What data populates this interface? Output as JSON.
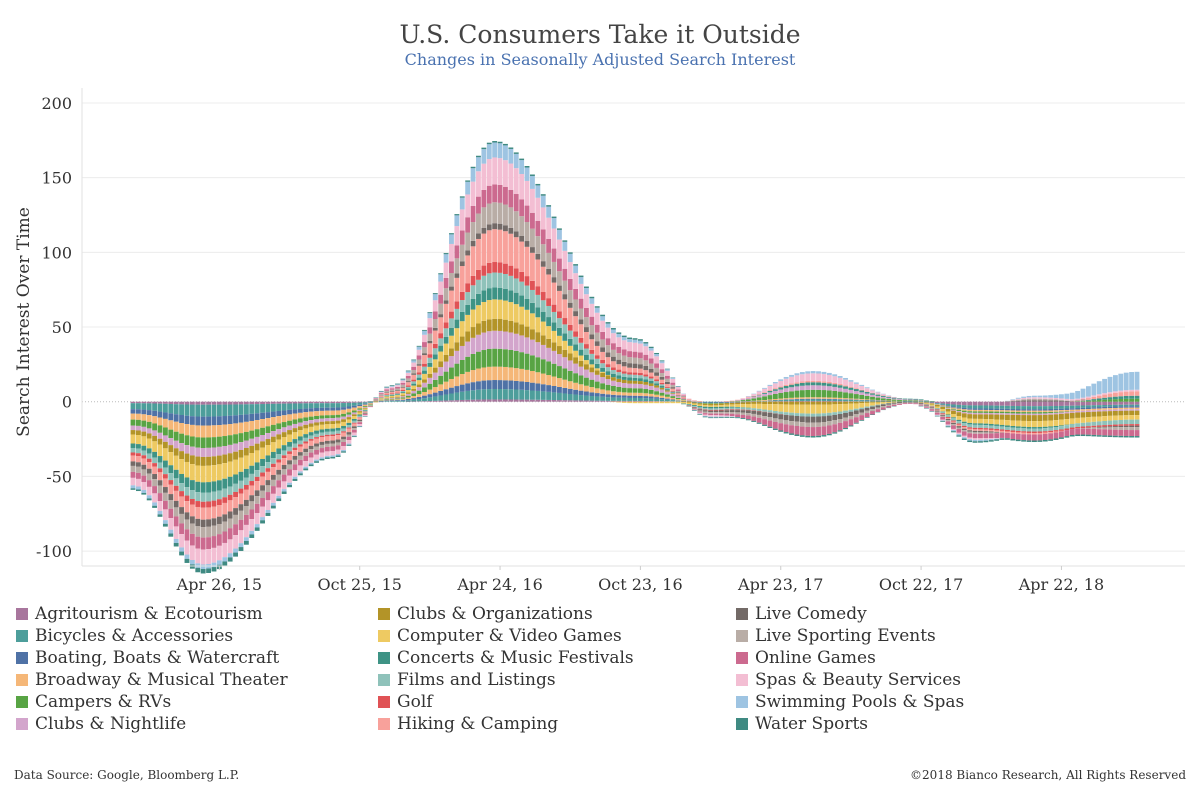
{
  "header": {
    "title": "U.S. Consumers Take it Outside",
    "subtitle": "Changes in Seasonally Adjusted Search Interest"
  },
  "footer": {
    "source": "Data Source: Google, Bloomberg L.P.",
    "copyright": "©2018 Bianco Research, All Rights Reserved"
  },
  "chart_data": {
    "type": "bar",
    "stacked": true,
    "title": "U.S. Consumers Take it Outside",
    "subtitle": "Changes in Seasonally Adjusted Search Interest",
    "ylabel": "Search Interest Over Time",
    "xlabel": "",
    "ylim": [
      -110,
      210
    ],
    "yticks": [
      -100,
      -50,
      0,
      50,
      100,
      150,
      200
    ],
    "grid": true,
    "legend_position": "bottom",
    "x_tick_labels": [
      "Apr 26, 15",
      "Oct 25, 15",
      "Apr 24, 16",
      "Oct 23, 16",
      "Apr 23, 17",
      "Oct 22, 17",
      "Apr 22, 18"
    ],
    "x_tick_dates": [
      "2015-04-26",
      "2015-10-25",
      "2016-04-24",
      "2016-10-23",
      "2017-04-23",
      "2017-10-22",
      "2018-04-22"
    ],
    "x_range": [
      "2015-01-04",
      "2018-07-29"
    ],
    "x_interval": "weekly",
    "layer_profile_dates": [
      "2015-01-04",
      "2015-04-05",
      "2015-09-20",
      "2015-12-06",
      "2016-04-17",
      "2016-10-16",
      "2017-01-22",
      "2017-06-04",
      "2017-10-08",
      "2017-12-31",
      "2018-03-18",
      "2018-07-29"
    ],
    "series": [
      {
        "name": "Agritourism & Ecotourism",
        "color": "#a8769d",
        "values": [
          -1,
          -2,
          -1,
          0,
          1.5,
          0.5,
          0,
          0.5,
          0,
          -2.5,
          -3,
          -2
        ]
      },
      {
        "name": "Bicycles & Accessories",
        "color": "#4d9e9b",
        "values": [
          -4,
          -8,
          -3,
          0.5,
          7,
          2,
          -0.5,
          1,
          0.5,
          -2,
          -2,
          -1
        ]
      },
      {
        "name": "Boating, Boats & Watercraft",
        "color": "#4f72a6",
        "values": [
          -3,
          -6,
          -2,
          0.5,
          6,
          1.5,
          -0.5,
          0.5,
          0,
          -1,
          -1,
          -1
        ]
      },
      {
        "name": "Broadway & Musical Theater",
        "color": "#f5b778",
        "values": [
          -4,
          -8,
          -3,
          0.5,
          9,
          2,
          0,
          1,
          0,
          -1,
          -1,
          -1
        ]
      },
      {
        "name": "Campers & RVs",
        "color": "#58a444",
        "values": [
          -4,
          -7,
          -2,
          0.5,
          12,
          3,
          -0.5,
          5,
          0.5,
          -1,
          -1,
          2
        ]
      },
      {
        "name": "Clubs & Nightlife",
        "color": "#d3a5cc",
        "values": [
          -3,
          -6,
          -2,
          0.5,
          12,
          3,
          0,
          3,
          0.5,
          -1,
          -1,
          -1
        ]
      },
      {
        "name": "Clubs & Organizations",
        "color": "#b39428",
        "values": [
          -3,
          -6,
          -2,
          0.5,
          8,
          2,
          -1,
          -2,
          0,
          -3,
          -4,
          -3
        ]
      },
      {
        "name": "Computer & Video Games",
        "color": "#eeca62",
        "values": [
          -6,
          -11,
          -3,
          1,
          13,
          -1,
          -1,
          -6,
          0,
          -3,
          -4,
          -3
        ]
      },
      {
        "name": "Concerts & Music Festivals",
        "color": "#3e9385",
        "values": [
          -3,
          -7,
          -2,
          0.5,
          8,
          2,
          -1,
          2,
          0.5,
          -1,
          -1,
          2
        ]
      },
      {
        "name": "Films and Listings",
        "color": "#8fc2ba",
        "values": [
          -3,
          -6,
          -2,
          0.5,
          10,
          2,
          -1,
          -2,
          0,
          -2,
          -2,
          -3
        ]
      },
      {
        "name": "Golf",
        "color": "#e05255",
        "values": [
          -2,
          -4,
          -1,
          0.5,
          7,
          1.5,
          -0.5,
          0,
          0,
          -1,
          -1,
          -1
        ]
      },
      {
        "name": "Hiking & Camping",
        "color": "#f8a19b",
        "values": [
          -4,
          -8,
          -3,
          1,
          22,
          3,
          0,
          1,
          0,
          -1,
          -1,
          3
        ]
      },
      {
        "name": "Live Comedy",
        "color": "#736a67",
        "values": [
          -3,
          -5,
          -2,
          0.5,
          4,
          3,
          -1,
          -4,
          -0.5,
          -1,
          1,
          -1
        ]
      },
      {
        "name": "Live Sporting Events",
        "color": "#b9ada6",
        "values": [
          -4,
          -7,
          -2,
          1,
          14,
          4,
          -1,
          -3,
          -0.5,
          -1,
          1,
          -2
        ]
      },
      {
        "name": "Online Games",
        "color": "#cc6a8f",
        "values": [
          -4,
          -8,
          -3,
          1,
          12,
          4,
          -1,
          -6,
          -0.5,
          -3,
          -4,
          -4
        ]
      },
      {
        "name": "Spas & Beauty Services",
        "color": "#f3bed3",
        "values": [
          -5,
          -10,
          -3,
          1,
          18,
          6,
          -1,
          5,
          0,
          -1,
          1,
          1
        ]
      },
      {
        "name": "Swimming Pools & Spas",
        "color": "#9ec4e2",
        "values": [
          -2,
          -3,
          -1,
          0.5,
          10,
          2,
          -0.5,
          1.5,
          0,
          -1,
          1,
          12
        ]
      },
      {
        "name": "Water Sports",
        "color": "#3f8a82",
        "values": [
          -1,
          -3,
          -1,
          0.5,
          1,
          1,
          -0.5,
          -1,
          0,
          -1,
          -1,
          -1
        ]
      }
    ]
  }
}
